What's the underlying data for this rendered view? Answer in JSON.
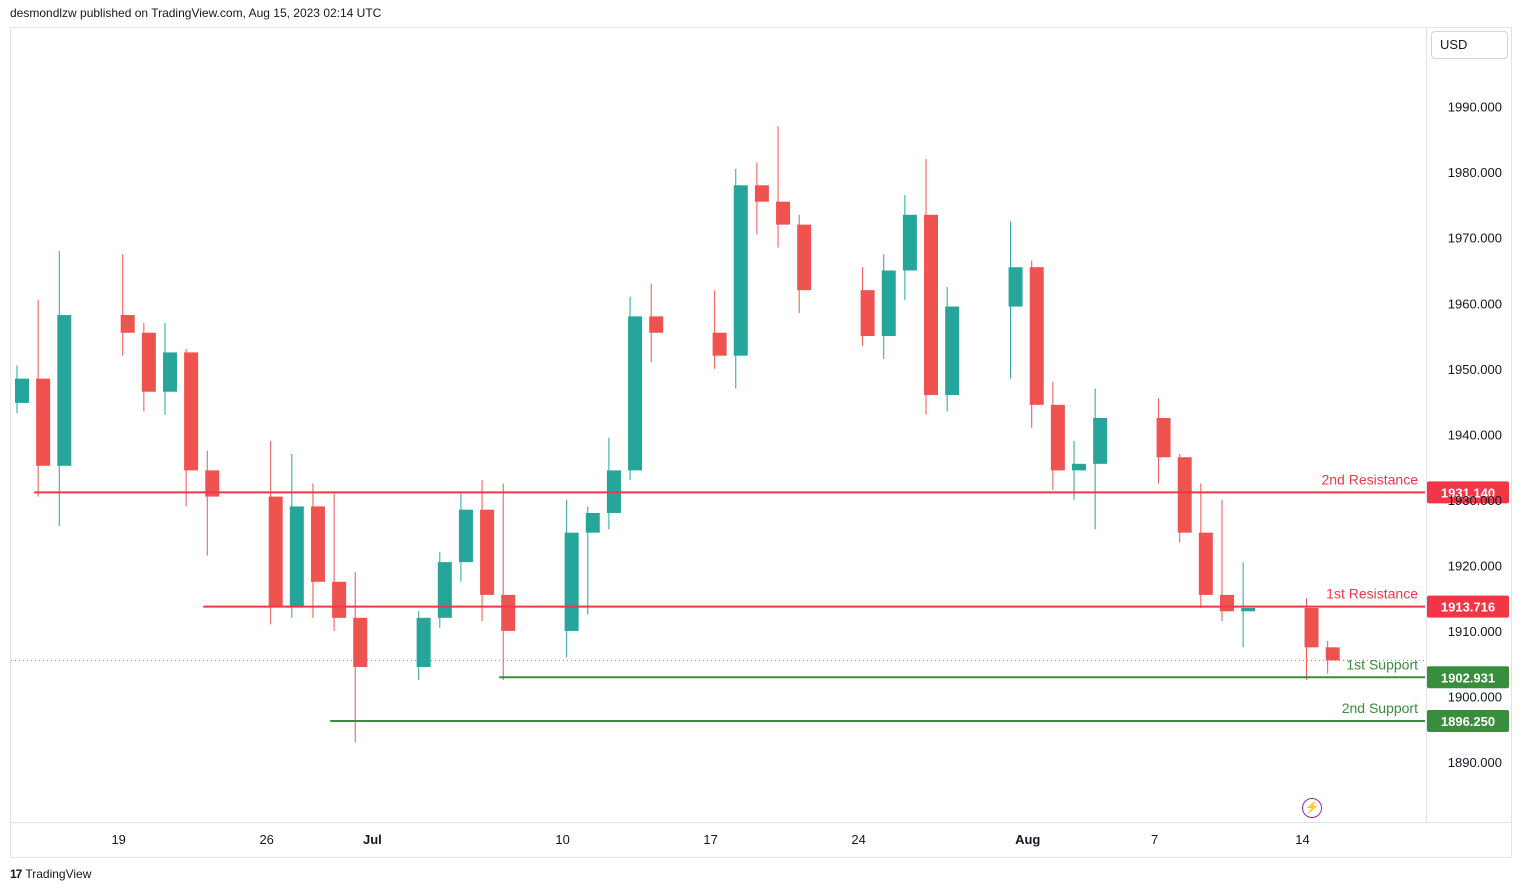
{
  "header": {
    "publisher": "desmondlzw published on TradingView.com, Aug 15, 2023 02:14 UTC"
  },
  "toolbar": {
    "currency": "USD"
  },
  "footer": {
    "brand": "TradingView",
    "logo": "17"
  },
  "icons": {
    "bolt": "lightning-icon"
  },
  "colors": {
    "up": "#26a69a",
    "down": "#ef5350",
    "resistance": "#f23645",
    "support": "#388e3c",
    "text": "#131722"
  },
  "chart_data": {
    "type": "candlestick",
    "ylim": [
      1881,
      2002
    ],
    "yticks": [
      1890,
      1900,
      1910,
      1920,
      1930,
      1940,
      1950,
      1960,
      1970,
      1980,
      1990
    ],
    "ytick_labels": [
      "1890.000",
      "1900.000",
      "1910.000",
      "1920.000",
      "1930.000",
      "1940.000",
      "1950.000",
      "1960.000",
      "1970.000",
      "1980.000",
      "1990.000"
    ],
    "x_ticks": [
      {
        "label": "19",
        "date": "2023-06-19",
        "bold": false
      },
      {
        "label": "26",
        "date": "2023-06-26",
        "bold": false
      },
      {
        "label": "Jul",
        "date": "2023-07-01",
        "bold": true
      },
      {
        "label": "10",
        "date": "2023-07-10",
        "bold": false
      },
      {
        "label": "17",
        "date": "2023-07-17",
        "bold": false
      },
      {
        "label": "24",
        "date": "2023-07-24",
        "bold": false
      },
      {
        "label": "Aug",
        "date": "2023-08-01",
        "bold": true
      },
      {
        "label": "7",
        "date": "2023-08-07",
        "bold": false
      },
      {
        "label": "14",
        "date": "2023-08-14",
        "bold": false
      }
    ],
    "levels": [
      {
        "name": "2nd Resistance",
        "value": 1931.14,
        "label": "1931.140",
        "kind": "resistance",
        "start": "2023-06-15"
      },
      {
        "name": "1st Resistance",
        "value": 1913.716,
        "label": "1913.716",
        "kind": "resistance",
        "start": "2023-06-23"
      },
      {
        "name": "1st Support",
        "value": 1902.931,
        "label": "1902.931",
        "kind": "support",
        "start": "2023-07-07"
      },
      {
        "name": "2nd Support",
        "value": 1896.25,
        "label": "1896.250",
        "kind": "support",
        "start": "2023-06-29"
      }
    ],
    "current_price": 1905.5,
    "candles": [
      {
        "t": "2023-06-14",
        "o": 1944.8,
        "h": 1950.5,
        "l": 1943.2,
        "c": 1948.5
      },
      {
        "t": "2023-06-15",
        "o": 1948.5,
        "h": 1960.5,
        "l": 1930.5,
        "c": 1935.2
      },
      {
        "t": "2023-06-16",
        "o": 1935.2,
        "h": 1968.0,
        "l": 1926.0,
        "c": 1958.2
      },
      {
        "t": "2023-06-19",
        "o": 1958.2,
        "h": 1967.5,
        "l": 1952.0,
        "c": 1955.5
      },
      {
        "t": "2023-06-20",
        "o": 1955.5,
        "h": 1957.0,
        "l": 1943.5,
        "c": 1946.5
      },
      {
        "t": "2023-06-21",
        "o": 1946.5,
        "h": 1957.0,
        "l": 1943.0,
        "c": 1952.5
      },
      {
        "t": "2023-06-22",
        "o": 1952.5,
        "h": 1953.0,
        "l": 1929.0,
        "c": 1934.5
      },
      {
        "t": "2023-06-23",
        "o": 1934.5,
        "h": 1937.5,
        "l": 1921.5,
        "c": 1930.5
      },
      {
        "t": "2023-06-26",
        "o": 1930.5,
        "h": 1939.0,
        "l": 1911.0,
        "c": 1913.7
      },
      {
        "t": "2023-06-27",
        "o": 1913.7,
        "h": 1937.0,
        "l": 1912.0,
        "c": 1929.0
      },
      {
        "t": "2023-06-28",
        "o": 1929.0,
        "h": 1932.5,
        "l": 1912.0,
        "c": 1917.5
      },
      {
        "t": "2023-06-29",
        "o": 1917.5,
        "h": 1931.0,
        "l": 1910.0,
        "c": 1912.0
      },
      {
        "t": "2023-06-30",
        "o": 1912.0,
        "h": 1919.0,
        "l": 1893.0,
        "c": 1904.5
      },
      {
        "t": "2023-07-03",
        "o": 1904.5,
        "h": 1913.0,
        "l": 1902.5,
        "c": 1912.0
      },
      {
        "t": "2023-07-04",
        "o": 1912.0,
        "h": 1922.0,
        "l": 1910.5,
        "c": 1920.5
      },
      {
        "t": "2023-07-05",
        "o": 1920.5,
        "h": 1931.0,
        "l": 1917.5,
        "c": 1928.5
      },
      {
        "t": "2023-07-06",
        "o": 1928.5,
        "h": 1933.0,
        "l": 1911.5,
        "c": 1915.5
      },
      {
        "t": "2023-07-07",
        "o": 1915.5,
        "h": 1932.5,
        "l": 1902.5,
        "c": 1910.0
      },
      {
        "t": "2023-07-10",
        "o": 1910.0,
        "h": 1930.0,
        "l": 1906.0,
        "c": 1925.0
      },
      {
        "t": "2023-07-11",
        "o": 1925.0,
        "h": 1929.0,
        "l": 1912.5,
        "c": 1928.0
      },
      {
        "t": "2023-07-12",
        "o": 1928.0,
        "h": 1939.5,
        "l": 1925.5,
        "c": 1934.5
      },
      {
        "t": "2023-07-13",
        "o": 1934.5,
        "h": 1961.0,
        "l": 1933.0,
        "c": 1958.0
      },
      {
        "t": "2023-07-14",
        "o": 1958.0,
        "h": 1963.0,
        "l": 1951.0,
        "c": 1955.5
      },
      {
        "t": "2023-07-17",
        "o": 1955.5,
        "h": 1962.0,
        "l": 1950.0,
        "c": 1952.0
      },
      {
        "t": "2023-07-18",
        "o": 1952.0,
        "h": 1980.5,
        "l": 1947.0,
        "c": 1978.0
      },
      {
        "t": "2023-07-19",
        "o": 1978.0,
        "h": 1981.5,
        "l": 1970.5,
        "c": 1975.5
      },
      {
        "t": "2023-07-20",
        "o": 1975.5,
        "h": 1987.0,
        "l": 1968.5,
        "c": 1972.0
      },
      {
        "t": "2023-07-21",
        "o": 1972.0,
        "h": 1973.5,
        "l": 1958.5,
        "c": 1962.0
      },
      {
        "t": "2023-07-24",
        "o": 1962.0,
        "h": 1965.5,
        "l": 1953.5,
        "c": 1955.0
      },
      {
        "t": "2023-07-25",
        "o": 1955.0,
        "h": 1967.5,
        "l": 1951.5,
        "c": 1965.0
      },
      {
        "t": "2023-07-26",
        "o": 1965.0,
        "h": 1976.5,
        "l": 1960.5,
        "c": 1973.5
      },
      {
        "t": "2023-07-27",
        "o": 1973.5,
        "h": 1982.0,
        "l": 1943.0,
        "c": 1946.0
      },
      {
        "t": "2023-07-28",
        "o": 1946.0,
        "h": 1962.5,
        "l": 1943.5,
        "c": 1959.5
      },
      {
        "t": "2023-07-31",
        "o": 1959.5,
        "h": 1972.5,
        "l": 1948.5,
        "c": 1965.5
      },
      {
        "t": "2023-08-01",
        "o": 1965.5,
        "h": 1966.5,
        "l": 1941.0,
        "c": 1944.5
      },
      {
        "t": "2023-08-02",
        "o": 1944.5,
        "h": 1948.0,
        "l": 1931.5,
        "c": 1934.5
      },
      {
        "t": "2023-08-03",
        "o": 1934.5,
        "h": 1939.0,
        "l": 1930.0,
        "c": 1935.5
      },
      {
        "t": "2023-08-04",
        "o": 1935.5,
        "h": 1947.0,
        "l": 1925.5,
        "c": 1942.5
      },
      {
        "t": "2023-08-07",
        "o": 1942.5,
        "h": 1945.5,
        "l": 1932.5,
        "c": 1936.5
      },
      {
        "t": "2023-08-08",
        "o": 1936.5,
        "h": 1937.0,
        "l": 1923.5,
        "c": 1925.0
      },
      {
        "t": "2023-08-09",
        "o": 1925.0,
        "h": 1932.5,
        "l": 1913.5,
        "c": 1915.5
      },
      {
        "t": "2023-08-10",
        "o": 1915.5,
        "h": 1930.0,
        "l": 1911.5,
        "c": 1913.0
      },
      {
        "t": "2023-08-11",
        "o": 1913.0,
        "h": 1920.5,
        "l": 1907.5,
        "c": 1913.5
      },
      {
        "t": "2023-08-14",
        "o": 1913.5,
        "h": 1915.0,
        "l": 1902.5,
        "c": 1907.5
      },
      {
        "t": "2023-08-15",
        "o": 1907.5,
        "h": 1908.5,
        "l": 1903.5,
        "c": 1905.5
      }
    ]
  }
}
